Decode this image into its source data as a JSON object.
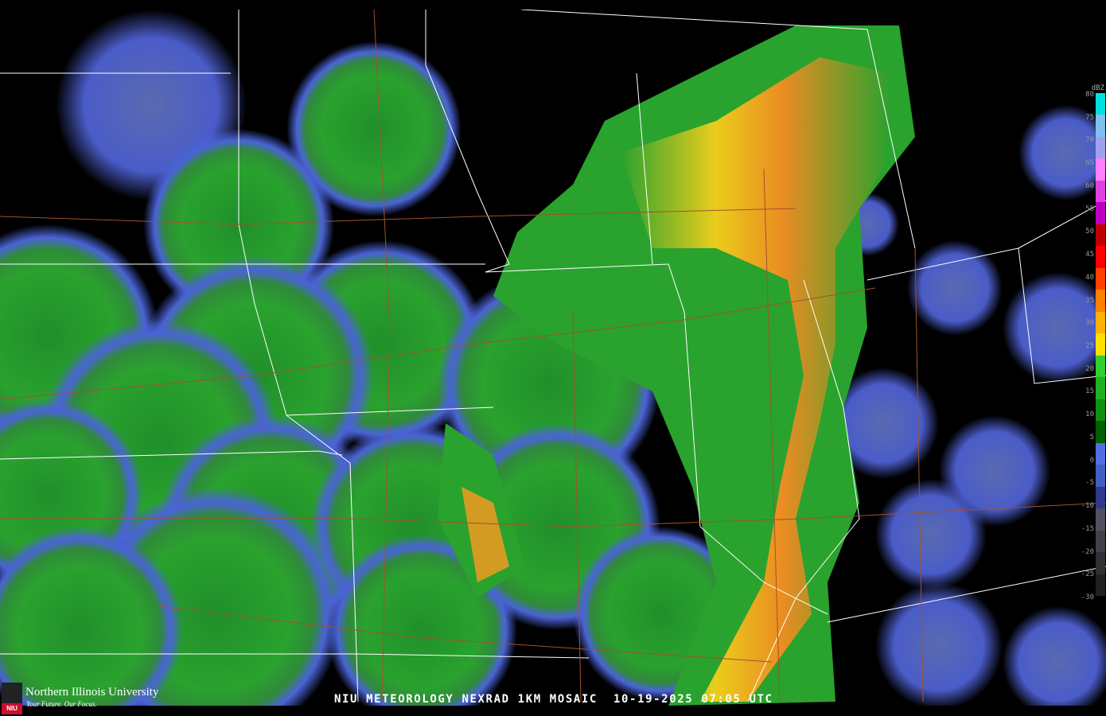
{
  "caption": "NIU METEOROLOGY NEXRAD 1KM MOSAIC  10-19-2025 07:05 UTC",
  "logo": {
    "name": "Northern Illinois University",
    "tagline": "Your Future. Our Focus.",
    "badge": "NIU"
  },
  "legend": {
    "unit": "dBZ",
    "labels": [
      "80",
      "75",
      "70",
      "65",
      "60",
      "55",
      "50",
      "45",
      "40",
      "35",
      "30",
      "25",
      "20",
      "15",
      "10",
      "5",
      "0",
      "-5",
      "-10",
      "-15",
      "-20",
      "-25",
      "-30"
    ],
    "colors": [
      "#00e0e0",
      "#80c0f0",
      "#a0a0f0",
      "#ff80ff",
      "#e040e0",
      "#c000c0",
      "#c00000",
      "#ff0000",
      "#ff4000",
      "#ff8000",
      "#ffb000",
      "#ffe000",
      "#30d030",
      "#20b020",
      "#109010",
      "#006000",
      "#5070e0",
      "#4060c0",
      "#303890",
      "#505060",
      "#404048",
      "#303034",
      "#202020"
    ]
  },
  "colors": {
    "background": "#000000",
    "light_echo": "#4a63d6",
    "moderate_echo": "#2fa52f",
    "strong_echo": "#ffd21a",
    "heavy_echo": "#ff7a1a",
    "state_lines": "#ffffff",
    "highways": "#a0522d"
  }
}
